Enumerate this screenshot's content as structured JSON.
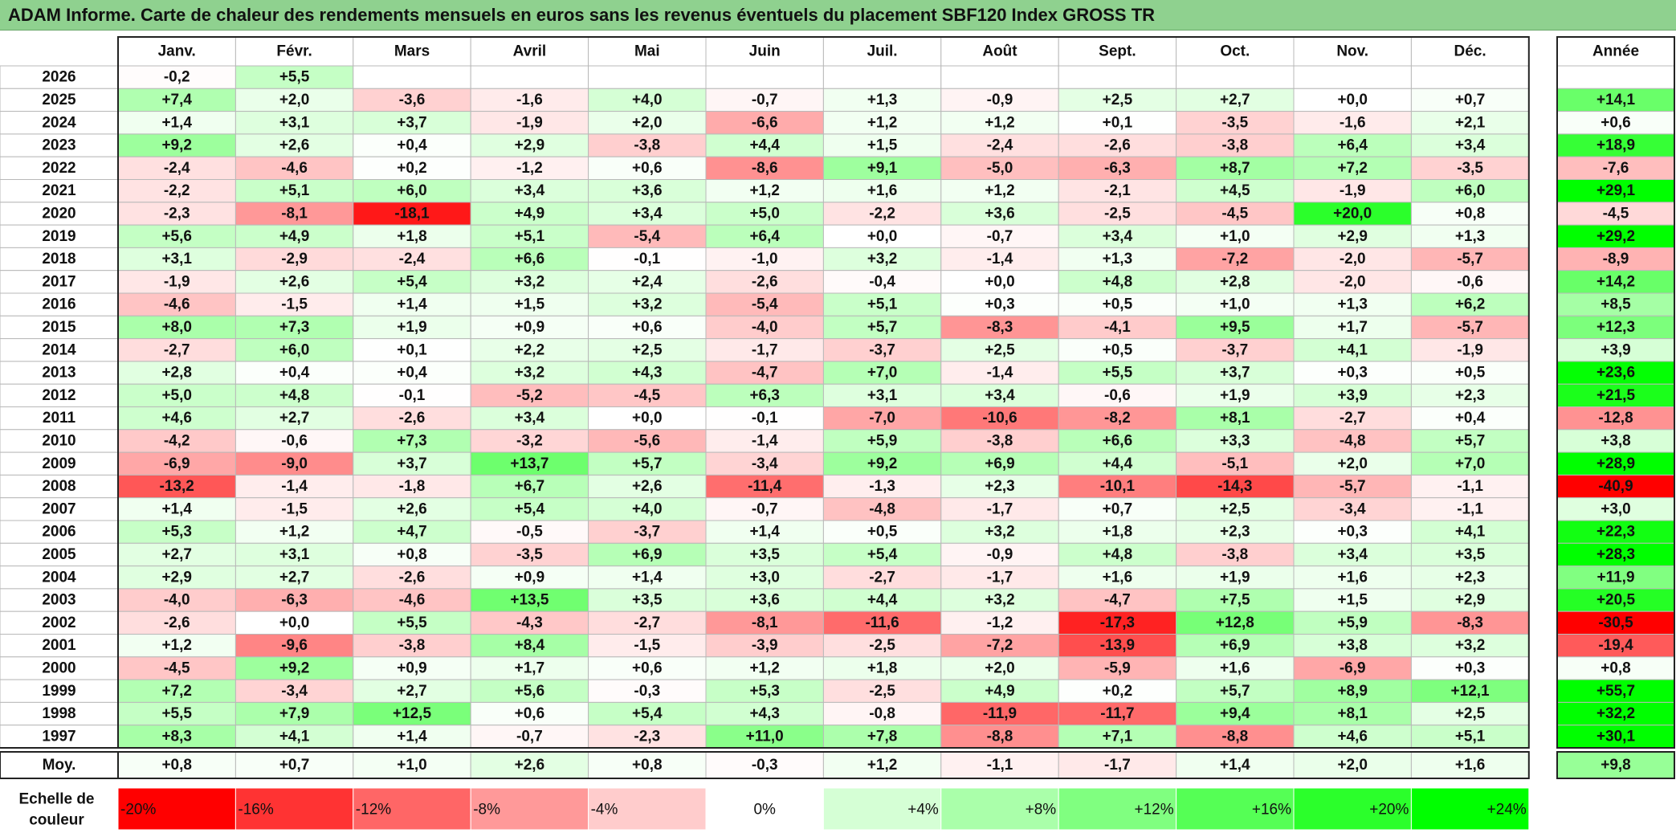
{
  "title": "ADAM Informe. Carte de chaleur des rendements mensuels en euros sans les revenus éventuels du placement SBF120 Index GROSS TR",
  "chart_data": {
    "type": "heatmap",
    "months": [
      "Janv.",
      "Févr.",
      "Mars",
      "Avril",
      "Mai",
      "Juin",
      "Juil.",
      "Août",
      "Sept.",
      "Oct.",
      "Nov.",
      "Déc."
    ],
    "annual_header": "Année",
    "rows": [
      {
        "year": "2026",
        "values": [
          "-0,2",
          "+5,5",
          "",
          "",
          "",
          "",
          "",
          "",
          "",
          "",
          "",
          ""
        ],
        "annual": ""
      },
      {
        "year": "2025",
        "values": [
          "+7,4",
          "+2,0",
          "-3,6",
          "-1,6",
          "+4,0",
          "-0,7",
          "+1,3",
          "-0,9",
          "+2,5",
          "+2,7",
          "+0,0",
          "+0,7"
        ],
        "annual": "+14,1"
      },
      {
        "year": "2024",
        "values": [
          "+1,4",
          "+3,1",
          "+3,7",
          "-1,9",
          "+2,0",
          "-6,6",
          "+1,2",
          "+1,2",
          "+0,1",
          "-3,5",
          "-1,6",
          "+2,1"
        ],
        "annual": "+0,6"
      },
      {
        "year": "2023",
        "values": [
          "+9,2",
          "+2,6",
          "+0,4",
          "+2,9",
          "-3,8",
          "+4,4",
          "+1,5",
          "-2,4",
          "-2,6",
          "-3,8",
          "+6,4",
          "+3,4"
        ],
        "annual": "+18,9"
      },
      {
        "year": "2022",
        "values": [
          "-2,4",
          "-4,6",
          "+0,2",
          "-1,2",
          "+0,6",
          "-8,6",
          "+9,1",
          "-5,0",
          "-6,3",
          "+8,7",
          "+7,2",
          "-3,5"
        ],
        "annual": "-7,6"
      },
      {
        "year": "2021",
        "values": [
          "-2,2",
          "+5,1",
          "+6,0",
          "+3,4",
          "+3,6",
          "+1,2",
          "+1,6",
          "+1,2",
          "-2,1",
          "+4,5",
          "-1,9",
          "+6,0"
        ],
        "annual": "+29,1"
      },
      {
        "year": "2020",
        "values": [
          "-2,3",
          "-8,1",
          "-18,1",
          "+4,9",
          "+3,4",
          "+5,0",
          "-2,2",
          "+3,6",
          "-2,5",
          "-4,5",
          "+20,0",
          "+0,8"
        ],
        "annual": "-4,5"
      },
      {
        "year": "2019",
        "values": [
          "+5,6",
          "+4,9",
          "+1,8",
          "+5,1",
          "-5,4",
          "+6,4",
          "+0,0",
          "-0,7",
          "+3,4",
          "+1,0",
          "+2,9",
          "+1,3"
        ],
        "annual": "+29,2"
      },
      {
        "year": "2018",
        "values": [
          "+3,1",
          "-2,9",
          "-2,4",
          "+6,6",
          "-0,1",
          "-1,0",
          "+3,2",
          "-1,4",
          "+1,3",
          "-7,2",
          "-2,0",
          "-5,7"
        ],
        "annual": "-8,9"
      },
      {
        "year": "2017",
        "values": [
          "-1,9",
          "+2,6",
          "+5,4",
          "+3,2",
          "+2,4",
          "-2,6",
          "-0,4",
          "+0,0",
          "+4,8",
          "+2,8",
          "-2,0",
          "-0,6"
        ],
        "annual": "+14,2"
      },
      {
        "year": "2016",
        "values": [
          "-4,6",
          "-1,5",
          "+1,4",
          "+1,5",
          "+3,2",
          "-5,4",
          "+5,1",
          "+0,3",
          "+0,5",
          "+1,0",
          "+1,3",
          "+6,2"
        ],
        "annual": "+8,5"
      },
      {
        "year": "2015",
        "values": [
          "+8,0",
          "+7,3",
          "+1,9",
          "+0,9",
          "+0,6",
          "-4,0",
          "+5,7",
          "-8,3",
          "-4,1",
          "+9,5",
          "+1,7",
          "-5,7"
        ],
        "annual": "+12,3"
      },
      {
        "year": "2014",
        "values": [
          "-2,7",
          "+6,0",
          "+0,1",
          "+2,2",
          "+2,5",
          "-1,7",
          "-3,7",
          "+2,5",
          "+0,5",
          "-3,7",
          "+4,1",
          "-1,9"
        ],
        "annual": "+3,9"
      },
      {
        "year": "2013",
        "values": [
          "+2,8",
          "+0,4",
          "+0,4",
          "+3,2",
          "+4,3",
          "-4,7",
          "+7,0",
          "-1,4",
          "+5,5",
          "+3,7",
          "+0,3",
          "+0,5"
        ],
        "annual": "+23,6"
      },
      {
        "year": "2012",
        "values": [
          "+5,0",
          "+4,8",
          "-0,1",
          "-5,2",
          "-4,5",
          "+6,3",
          "+3,1",
          "+3,4",
          "-0,6",
          "+1,9",
          "+3,9",
          "+2,3"
        ],
        "annual": "+21,5"
      },
      {
        "year": "2011",
        "values": [
          "+4,6",
          "+2,7",
          "-2,6",
          "+3,4",
          "+0,0",
          "-0,1",
          "-7,0",
          "-10,6",
          "-8,2",
          "+8,1",
          "-2,7",
          "+0,4"
        ],
        "annual": "-12,8"
      },
      {
        "year": "2010",
        "values": [
          "-4,2",
          "-0,6",
          "+7,3",
          "-3,2",
          "-5,6",
          "-1,4",
          "+5,9",
          "-3,8",
          "+6,6",
          "+3,3",
          "-4,8",
          "+5,7"
        ],
        "annual": "+3,8"
      },
      {
        "year": "2009",
        "values": [
          "-6,9",
          "-9,0",
          "+3,7",
          "+13,7",
          "+5,7",
          "-3,4",
          "+9,2",
          "+6,9",
          "+4,4",
          "-5,1",
          "+2,0",
          "+7,0"
        ],
        "annual": "+28,9"
      },
      {
        "year": "2008",
        "values": [
          "-13,2",
          "-1,4",
          "-1,8",
          "+6,7",
          "+2,6",
          "-11,4",
          "-1,3",
          "+2,3",
          "-10,1",
          "-14,3",
          "-5,7",
          "-1,1"
        ],
        "annual": "-40,9"
      },
      {
        "year": "2007",
        "values": [
          "+1,4",
          "-1,5",
          "+2,6",
          "+5,4",
          "+4,0",
          "-0,7",
          "-4,8",
          "-1,7",
          "+0,7",
          "+2,5",
          "-3,4",
          "-1,1"
        ],
        "annual": "+3,0"
      },
      {
        "year": "2006",
        "values": [
          "+5,3",
          "+1,2",
          "+4,7",
          "-0,5",
          "-3,7",
          "+1,4",
          "+0,5",
          "+3,2",
          "+1,8",
          "+2,3",
          "+0,3",
          "+4,1"
        ],
        "annual": "+22,3"
      },
      {
        "year": "2005",
        "values": [
          "+2,7",
          "+3,1",
          "+0,8",
          "-3,5",
          "+6,9",
          "+3,5",
          "+5,4",
          "-0,9",
          "+4,8",
          "-3,8",
          "+3,4",
          "+3,5"
        ],
        "annual": "+28,3"
      },
      {
        "year": "2004",
        "values": [
          "+2,9",
          "+2,7",
          "-2,6",
          "+0,9",
          "+1,4",
          "+3,0",
          "-2,7",
          "-1,7",
          "+1,6",
          "+1,9",
          "+1,6",
          "+2,3"
        ],
        "annual": "+11,9"
      },
      {
        "year": "2003",
        "values": [
          "-4,0",
          "-6,3",
          "-4,6",
          "+13,5",
          "+3,5",
          "+3,6",
          "+4,4",
          "+3,2",
          "-4,7",
          "+7,5",
          "+1,5",
          "+2,9"
        ],
        "annual": "+20,5"
      },
      {
        "year": "2002",
        "values": [
          "-2,6",
          "+0,0",
          "+5,5",
          "-4,3",
          "-2,7",
          "-8,1",
          "-11,6",
          "-1,2",
          "-17,3",
          "+12,8",
          "+5,9",
          "-8,3"
        ],
        "annual": "-30,5"
      },
      {
        "year": "2001",
        "values": [
          "+1,2",
          "-9,6",
          "-3,8",
          "+8,4",
          "-1,5",
          "-3,9",
          "-2,5",
          "-7,2",
          "-13,9",
          "+6,9",
          "+3,8",
          "+3,2"
        ],
        "annual": "-19,4"
      },
      {
        "year": "2000",
        "values": [
          "-4,5",
          "+9,2",
          "+0,9",
          "+1,7",
          "+0,6",
          "+1,2",
          "+1,8",
          "+2,0",
          "-5,9",
          "+1,6",
          "-6,9",
          "+0,3"
        ],
        "annual": "+0,8"
      },
      {
        "year": "1999",
        "values": [
          "+7,2",
          "-3,4",
          "+2,7",
          "+5,6",
          "-0,3",
          "+5,3",
          "-2,5",
          "+4,9",
          "+0,2",
          "+5,7",
          "+8,9",
          "+12,1"
        ],
        "annual": "+55,7"
      },
      {
        "year": "1998",
        "values": [
          "+5,5",
          "+7,9",
          "+12,5",
          "+0,6",
          "+5,4",
          "+4,3",
          "-0,8",
          "-11,9",
          "-11,7",
          "+9,4",
          "+8,1",
          "+2,5"
        ],
        "annual": "+32,2"
      },
      {
        "year": "1997",
        "values": [
          "+8,3",
          "+4,1",
          "+1,4",
          "-0,7",
          "-2,3",
          "+11,0",
          "+7,8",
          "-8,8",
          "+7,1",
          "-8,8",
          "+4,6",
          "+5,1"
        ],
        "annual": "+30,1"
      }
    ],
    "average": {
      "label": "Moy.",
      "values": [
        "+0,8",
        "+0,7",
        "+1,0",
        "+2,6",
        "+0,8",
        "-0,3",
        "+1,2",
        "-1,1",
        "-1,7",
        "+1,4",
        "+2,0",
        "+1,6"
      ],
      "annual": "+9,8"
    },
    "scale": {
      "label_line1": "Echelle de",
      "label_line2": "couleur",
      "steps": [
        {
          "label": "-20%",
          "value": -20,
          "color": "#ff0000"
        },
        {
          "label": "-16%",
          "value": -16,
          "color": "#ff3333"
        },
        {
          "label": "-12%",
          "value": -12,
          "color": "#ff6666"
        },
        {
          "label": "-8%",
          "value": -8,
          "color": "#ff9999"
        },
        {
          "label": "-4%",
          "value": -4,
          "color": "#ffcccc"
        },
        {
          "label": "0%",
          "value": 0,
          "color": "#ffffff"
        },
        {
          "label": "+4%",
          "value": 4,
          "color": "#d5ffd5"
        },
        {
          "label": "+8%",
          "value": 8,
          "color": "#aaffaa"
        },
        {
          "label": "+12%",
          "value": 12,
          "color": "#80ff80"
        },
        {
          "label": "+16%",
          "value": 16,
          "color": "#55ff55"
        },
        {
          "label": "+20%",
          "value": 20,
          "color": "#2bff2b"
        },
        {
          "label": "+24%",
          "value": 24,
          "color": "#00ff00"
        }
      ]
    }
  }
}
